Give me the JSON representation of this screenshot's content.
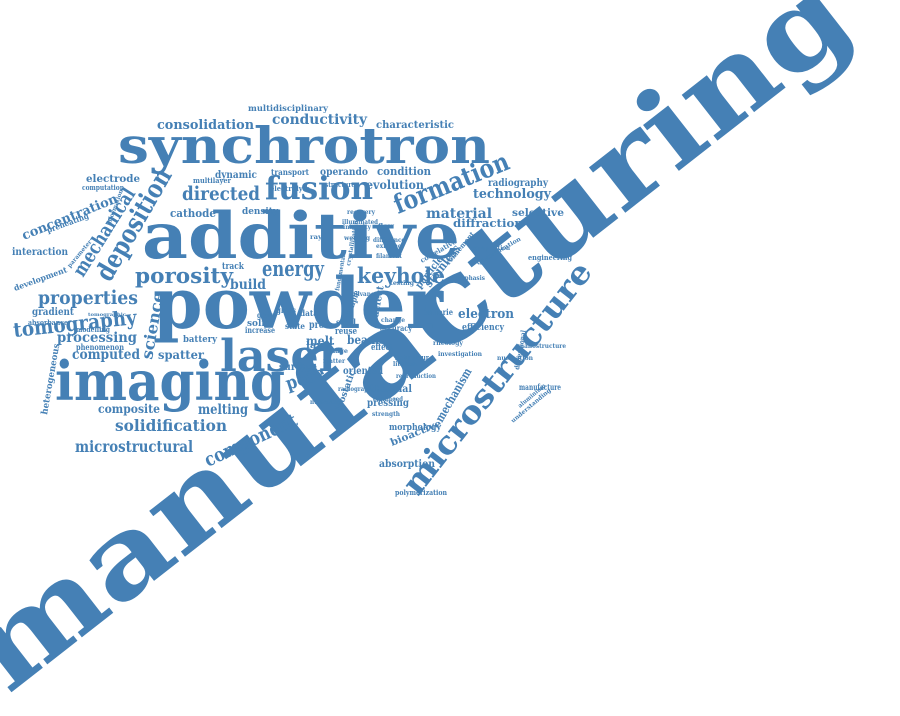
{
  "cloud": {
    "color": "#4580b5",
    "words": [
      {
        "text": "manufacturing"
      },
      {
        "text": "additive"
      },
      {
        "text": "powder"
      },
      {
        "text": "synchrotron"
      },
      {
        "text": "imaging"
      },
      {
        "text": "laser"
      },
      {
        "text": "fusion"
      },
      {
        "text": "microstructure"
      },
      {
        "text": "deposition"
      },
      {
        "text": "formation"
      },
      {
        "text": "porosity"
      },
      {
        "text": "keyhole"
      },
      {
        "text": "energy"
      },
      {
        "text": "directed"
      },
      {
        "text": "mechanical"
      },
      {
        "text": "properties"
      },
      {
        "text": "tomography"
      },
      {
        "text": "consolidation"
      },
      {
        "text": "conductivity"
      },
      {
        "text": "material"
      },
      {
        "text": "concentration"
      },
      {
        "text": "processing"
      },
      {
        "text": "computed"
      },
      {
        "text": "science"
      },
      {
        "text": "component"
      },
      {
        "text": "solidification"
      },
      {
        "text": "microstructural"
      },
      {
        "text": "melting"
      },
      {
        "text": "composite"
      },
      {
        "text": "spatter"
      },
      {
        "text": "pore"
      },
      {
        "text": "electron"
      },
      {
        "text": "technology"
      },
      {
        "text": "diffraction"
      },
      {
        "text": "selective"
      },
      {
        "text": "radiography"
      },
      {
        "text": "evolution"
      },
      {
        "text": "condition"
      },
      {
        "text": "operando"
      },
      {
        "text": "characteristic"
      },
      {
        "text": "multidisciplinary"
      },
      {
        "text": "cathode"
      },
      {
        "text": "density"
      },
      {
        "text": "dynamic"
      },
      {
        "text": "electrode"
      },
      {
        "text": "build"
      },
      {
        "text": "mechanism"
      },
      {
        "text": "melt"
      },
      {
        "text": "beam"
      },
      {
        "text": "layer"
      },
      {
        "text": "thermal"
      },
      {
        "text": "pressing"
      },
      {
        "text": "oriented"
      },
      {
        "text": "bioactive"
      },
      {
        "text": "morphology"
      },
      {
        "text": "absorption"
      },
      {
        "text": "interaction"
      },
      {
        "text": "development"
      },
      {
        "text": "gradient"
      },
      {
        "text": "heterogeneous"
      },
      {
        "text": "phenomenon"
      },
      {
        "text": "battery"
      },
      {
        "text": "solid"
      },
      {
        "text": "surface"
      },
      {
        "text": "isostatic"
      },
      {
        "text": "stainless"
      },
      {
        "text": "particle"
      },
      {
        "text": "defect"
      },
      {
        "text": "manufacture"
      },
      {
        "text": "efficiency"
      },
      {
        "text": "engineering"
      },
      {
        "text": "batterie"
      },
      {
        "text": "accuracy"
      },
      {
        "text": "dimensional"
      },
      {
        "text": "track"
      },
      {
        "text": "transport"
      },
      {
        "text": "multilayer"
      },
      {
        "text": "computation"
      },
      {
        "text": "preheating"
      },
      {
        "text": "absorbance"
      },
      {
        "text": "modelling"
      },
      {
        "text": "increase"
      },
      {
        "text": "reuse"
      },
      {
        "text": "proc"
      },
      {
        "text": "steel"
      },
      {
        "text": "effect"
      },
      {
        "text": "polymerization"
      },
      {
        "text": "grain"
      },
      {
        "text": "data"
      },
      {
        "text": "glass"
      },
      {
        "text": "structure"
      },
      {
        "text": "sample"
      },
      {
        "text": "state"
      },
      {
        "text": "electrolyte"
      },
      {
        "text": "correlative"
      },
      {
        "text": "refinement"
      },
      {
        "text": "behaviour"
      },
      {
        "text": "quantification"
      },
      {
        "text": "understanding"
      },
      {
        "text": "recovery"
      },
      {
        "text": "change"
      },
      {
        "text": "existing"
      },
      {
        "text": "filament"
      },
      {
        "text": "difference"
      },
      {
        "text": "illuminated"
      },
      {
        "text": "crystallization"
      },
      {
        "text": "nucleation"
      },
      {
        "text": "rheology"
      },
      {
        "text": "wetting"
      },
      {
        "text": "matter"
      },
      {
        "text": "image"
      },
      {
        "text": "numerical"
      },
      {
        "text": "parameter"
      },
      {
        "text": "information"
      },
      {
        "text": "tomographic"
      },
      {
        "text": "investigation"
      },
      {
        "text": "emphasis"
      },
      {
        "text": "lithium"
      },
      {
        "text": "reproduction"
      },
      {
        "text": "nanostructure"
      },
      {
        "text": "composition"
      },
      {
        "text": "flow"
      },
      {
        "text": "advance"
      },
      {
        "text": "fundamental"
      },
      {
        "text": "radiograph"
      },
      {
        "text": "ray"
      },
      {
        "text": "enhanced"
      },
      {
        "text": "strength"
      },
      {
        "text": "testing"
      },
      {
        "text": "integrity"
      },
      {
        "text": "aluminium"
      }
    ]
  }
}
